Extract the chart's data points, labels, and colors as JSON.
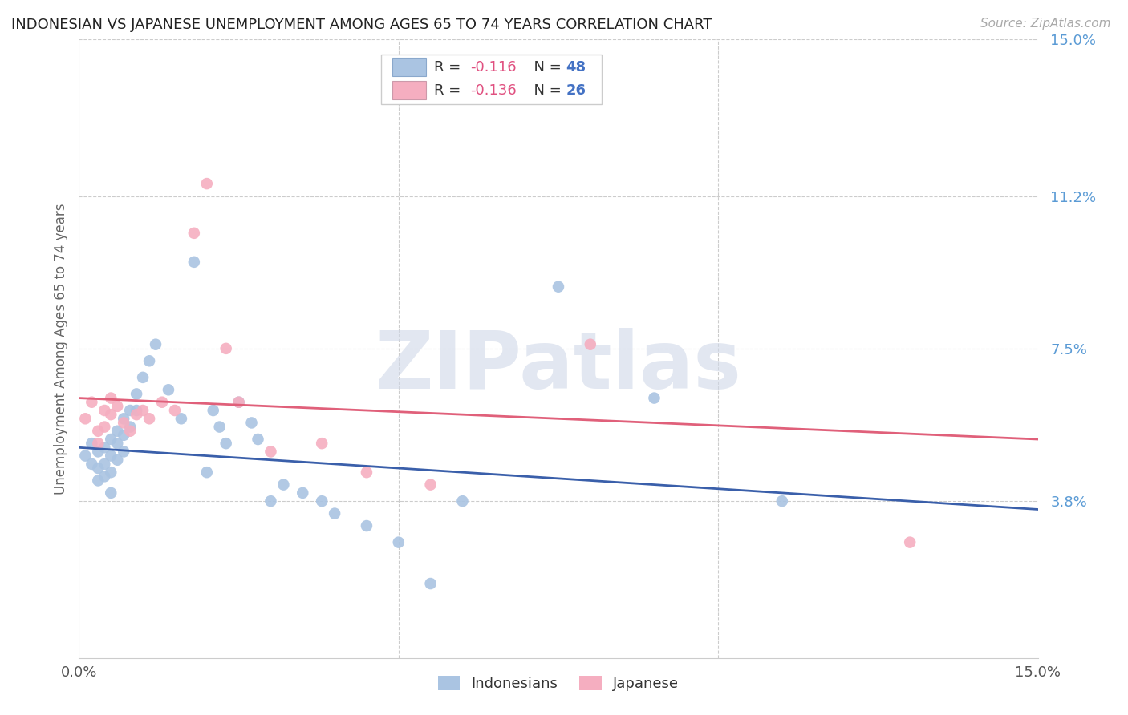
{
  "title": "INDONESIAN VS JAPANESE UNEMPLOYMENT AMONG AGES 65 TO 74 YEARS CORRELATION CHART",
  "source": "Source: ZipAtlas.com",
  "ylabel": "Unemployment Among Ages 65 to 74 years",
  "xlim": [
    0,
    0.15
  ],
  "ylim": [
    0,
    0.15
  ],
  "right_yticks": [
    0.15,
    0.112,
    0.075,
    0.038
  ],
  "right_yticklabels": [
    "15.0%",
    "11.2%",
    "7.5%",
    "3.8%"
  ],
  "color_indonesian": "#aac4e2",
  "color_japanese": "#f5aec0",
  "color_line_indonesian": "#3a5faa",
  "color_line_japanese": "#e0607a",
  "watermark": "ZIPatlas",
  "indo_line_y0": 0.051,
  "indo_line_y1": 0.036,
  "jap_line_y0": 0.063,
  "jap_line_y1": 0.053,
  "indonesian_x": [
    0.001,
    0.002,
    0.002,
    0.003,
    0.003,
    0.003,
    0.004,
    0.004,
    0.004,
    0.005,
    0.005,
    0.005,
    0.005,
    0.006,
    0.006,
    0.006,
    0.007,
    0.007,
    0.007,
    0.008,
    0.008,
    0.009,
    0.009,
    0.01,
    0.011,
    0.012,
    0.014,
    0.016,
    0.018,
    0.02,
    0.021,
    0.022,
    0.023,
    0.025,
    0.027,
    0.028,
    0.03,
    0.032,
    0.035,
    0.038,
    0.04,
    0.045,
    0.05,
    0.055,
    0.06,
    0.075,
    0.09,
    0.11
  ],
  "indonesian_y": [
    0.049,
    0.052,
    0.047,
    0.05,
    0.046,
    0.043,
    0.051,
    0.047,
    0.044,
    0.053,
    0.049,
    0.045,
    0.04,
    0.055,
    0.052,
    0.048,
    0.058,
    0.054,
    0.05,
    0.06,
    0.056,
    0.064,
    0.06,
    0.068,
    0.072,
    0.076,
    0.065,
    0.058,
    0.096,
    0.045,
    0.06,
    0.056,
    0.052,
    0.062,
    0.057,
    0.053,
    0.038,
    0.042,
    0.04,
    0.038,
    0.035,
    0.032,
    0.028,
    0.018,
    0.038,
    0.09,
    0.063,
    0.038
  ],
  "japanese_x": [
    0.001,
    0.002,
    0.003,
    0.003,
    0.004,
    0.004,
    0.005,
    0.005,
    0.006,
    0.007,
    0.008,
    0.009,
    0.01,
    0.011,
    0.013,
    0.015,
    0.018,
    0.02,
    0.023,
    0.025,
    0.03,
    0.038,
    0.045,
    0.055,
    0.08,
    0.13
  ],
  "japanese_y": [
    0.058,
    0.062,
    0.055,
    0.052,
    0.06,
    0.056,
    0.063,
    0.059,
    0.061,
    0.057,
    0.055,
    0.059,
    0.06,
    0.058,
    0.062,
    0.06,
    0.103,
    0.115,
    0.075,
    0.062,
    0.05,
    0.052,
    0.045,
    0.042,
    0.076,
    0.028
  ]
}
